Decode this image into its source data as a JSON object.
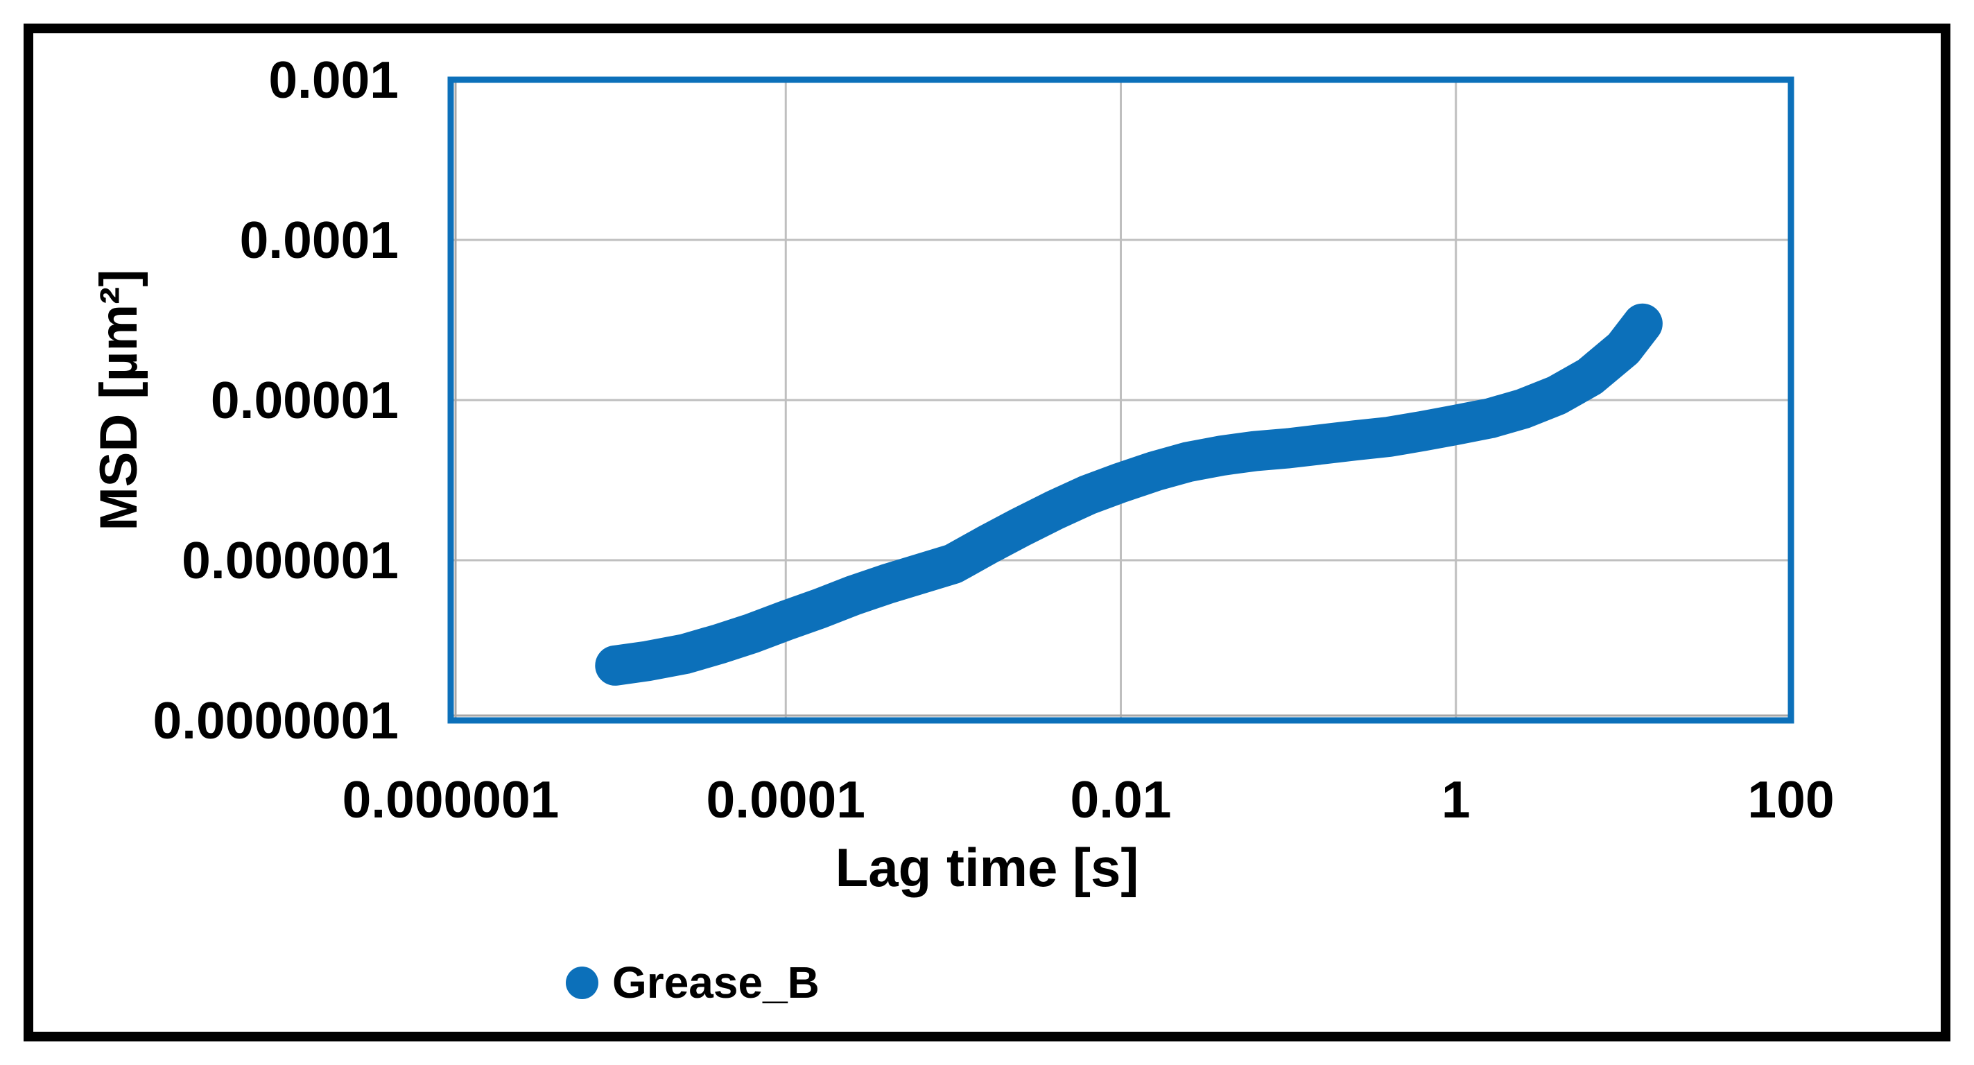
{
  "figure": {
    "background_color": "#FFFFFF",
    "frame_color": "#000000"
  },
  "chart_data": {
    "type": "scatter",
    "title": "",
    "xlabel": "Lag time [s]",
    "ylabel": "MSD [µm²]",
    "x_scale": "log",
    "y_scale": "log",
    "xlim": [
      1e-06,
      100
    ],
    "ylim": [
      1e-07,
      0.001
    ],
    "grid": true,
    "grid_color": "#BFBFBF",
    "axis_line_color": "#A6A6A6",
    "plot_border_color": "#0C70BA",
    "legend_position": "bottom",
    "x_ticks": [
      {
        "value": 1e-06,
        "label": "0.000001"
      },
      {
        "value": 0.0001,
        "label": "0.0001"
      },
      {
        "value": 0.01,
        "label": "0.01"
      },
      {
        "value": 1,
        "label": "1"
      },
      {
        "value": 100,
        "label": "100"
      }
    ],
    "y_ticks": [
      {
        "value": 0.001,
        "label": "0.001"
      },
      {
        "value": 0.0001,
        "label": "0.0001"
      },
      {
        "value": 1e-05,
        "label": "0.00001"
      },
      {
        "value": 1e-06,
        "label": "0.000001"
      },
      {
        "value": 1e-07,
        "label": "0.0000001"
      }
    ],
    "x_gridlines": [
      0.0001,
      0.01,
      1
    ],
    "y_gridlines": [
      0.0001,
      1e-05,
      1e-06
    ],
    "series": [
      {
        "name": "Grease_B",
        "color": "#0C70BA",
        "marker": "circle",
        "points": [
          [
            9.6e-06,
            2.2e-07
          ],
          [
            1.5e-05,
            2.35e-07
          ],
          [
            2.5e-05,
            2.6e-07
          ],
          [
            4e-05,
            3e-07
          ],
          [
            6.3e-05,
            3.5e-07
          ],
          [
            0.0001,
            4.2e-07
          ],
          [
            0.00016,
            5e-07
          ],
          [
            0.00025,
            6e-07
          ],
          [
            0.0004,
            7.1e-07
          ],
          [
            0.00063,
            8.2e-07
          ],
          [
            0.001,
            9.5e-07
          ],
          [
            0.0016,
            1.25e-06
          ],
          [
            0.0025,
            1.6e-06
          ],
          [
            0.004,
            2.05e-06
          ],
          [
            0.0063,
            2.55e-06
          ],
          [
            0.01,
            3.05e-06
          ],
          [
            0.016,
            3.6e-06
          ],
          [
            0.025,
            4.1e-06
          ],
          [
            0.04,
            4.5e-06
          ],
          [
            0.063,
            4.8e-06
          ],
          [
            0.1,
            5e-06
          ],
          [
            0.16,
            5.3e-06
          ],
          [
            0.25,
            5.6e-06
          ],
          [
            0.4,
            5.9e-06
          ],
          [
            0.63,
            6.4e-06
          ],
          [
            1.0,
            7e-06
          ],
          [
            1.6,
            7.7e-06
          ],
          [
            2.5,
            8.8e-06
          ],
          [
            4.0,
            1.07e-05
          ],
          [
            6.3,
            1.4e-05
          ],
          [
            10.0,
            2.1e-05
          ],
          [
            13.0,
            3e-05
          ]
        ]
      }
    ]
  },
  "legend": {
    "items": [
      {
        "label": "Grease_B",
        "color": "#0C70BA"
      }
    ]
  }
}
